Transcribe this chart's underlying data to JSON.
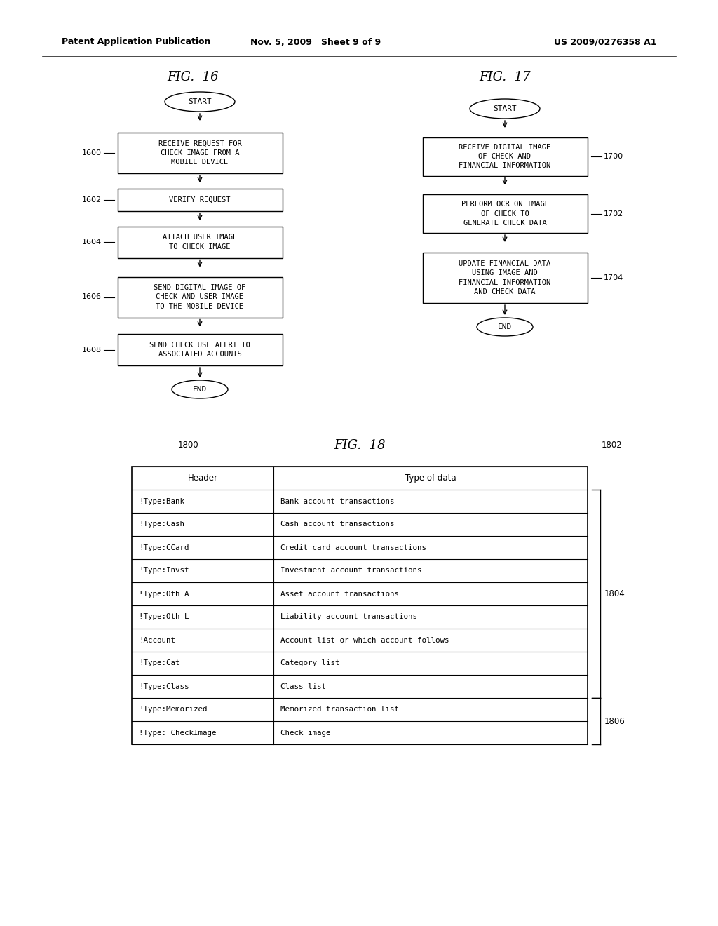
{
  "header_text_left": "Patent Application Publication",
  "header_text_mid": "Nov. 5, 2009   Sheet 9 of 9",
  "header_text_right": "US 2009/0276358 A1",
  "fig16_title": "FIG.  16",
  "fig17_title": "FIG.  17",
  "fig18_title": "FIG.  18",
  "fig16_boxes": [
    {
      "text": "RECEIVE REQUEST FOR\nCHECK IMAGE FROM A\nMOBILE DEVICE",
      "label": "1600",
      "lines": 3
    },
    {
      "text": "VERIFY REQUEST",
      "label": "1602",
      "lines": 1
    },
    {
      "text": "ATTACH USER IMAGE\nTO CHECK IMAGE",
      "label": "1604",
      "lines": 2
    },
    {
      "text": "SEND DIGITAL IMAGE OF\nCHECK AND USER IMAGE\nTO THE MOBILE DEVICE",
      "label": "1606",
      "lines": 3
    },
    {
      "text": "SEND CHECK USE ALERT TO\nASSOCIATED ACCOUNTS",
      "label": "1608",
      "lines": 2
    }
  ],
  "fig17_boxes": [
    {
      "text": "RECEIVE DIGITAL IMAGE\nOF CHECK AND\nFINANCIAL INFORMATION",
      "label": "1700",
      "lines": 3
    },
    {
      "text": "PERFORM OCR ON IMAGE\nOF CHECK TO\nGENERATE CHECK DATA",
      "label": "1702",
      "lines": 3
    },
    {
      "text": "UPDATE FINANCIAL DATA\nUSING IMAGE AND\nFINANCIAL INFORMATION\nAND CHECK DATA",
      "label": "1704",
      "lines": 4
    }
  ],
  "fig18_headers": [
    "Header",
    "Type of data"
  ],
  "fig18_rows": [
    [
      "!Type:Bank",
      "Bank account transactions"
    ],
    [
      "!Type:Cash",
      "Cash account transactions"
    ],
    [
      "!Type:CCard",
      "Credit card account transactions"
    ],
    [
      "!Type:Invst",
      "Investment account transactions"
    ],
    [
      "!Type:Oth A",
      "Asset account transactions"
    ],
    [
      "!Type:Oth L",
      "Liability account transactions"
    ],
    [
      "!Account",
      "Account list or which account follows"
    ],
    [
      "!Type:Cat",
      "Category list"
    ],
    [
      "!Type:Class",
      "Class list"
    ],
    [
      "!Type:Memorized",
      "Memorized transaction list"
    ],
    [
      "!Type: CheckImage",
      "Check image"
    ]
  ],
  "label_1800": "1800",
  "label_1802": "1802",
  "label_1804": "1804",
  "label_1806": "1806",
  "bg_color": "#ffffff"
}
